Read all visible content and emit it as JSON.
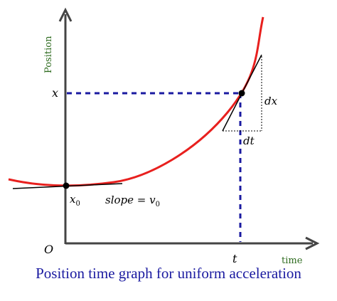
{
  "caption": "Position time graph for uniform acceleration",
  "axes": {
    "y_label": "Position",
    "x_label": "time",
    "origin_label": "O"
  },
  "points": {
    "x_label": "x",
    "t_label": "t",
    "x0_label": "x",
    "x0_subscript": "0"
  },
  "annotations": {
    "slope_text": "slope = v",
    "slope_subscript": "0",
    "dx_label": "dx",
    "dt_label": "dt"
  },
  "colors": {
    "curve": "#e8201e",
    "dashed_lines": "#1a1aa0",
    "caption": "#1a1aa0",
    "axis_labels": "#2e6b1f",
    "axes": "#444444"
  }
}
